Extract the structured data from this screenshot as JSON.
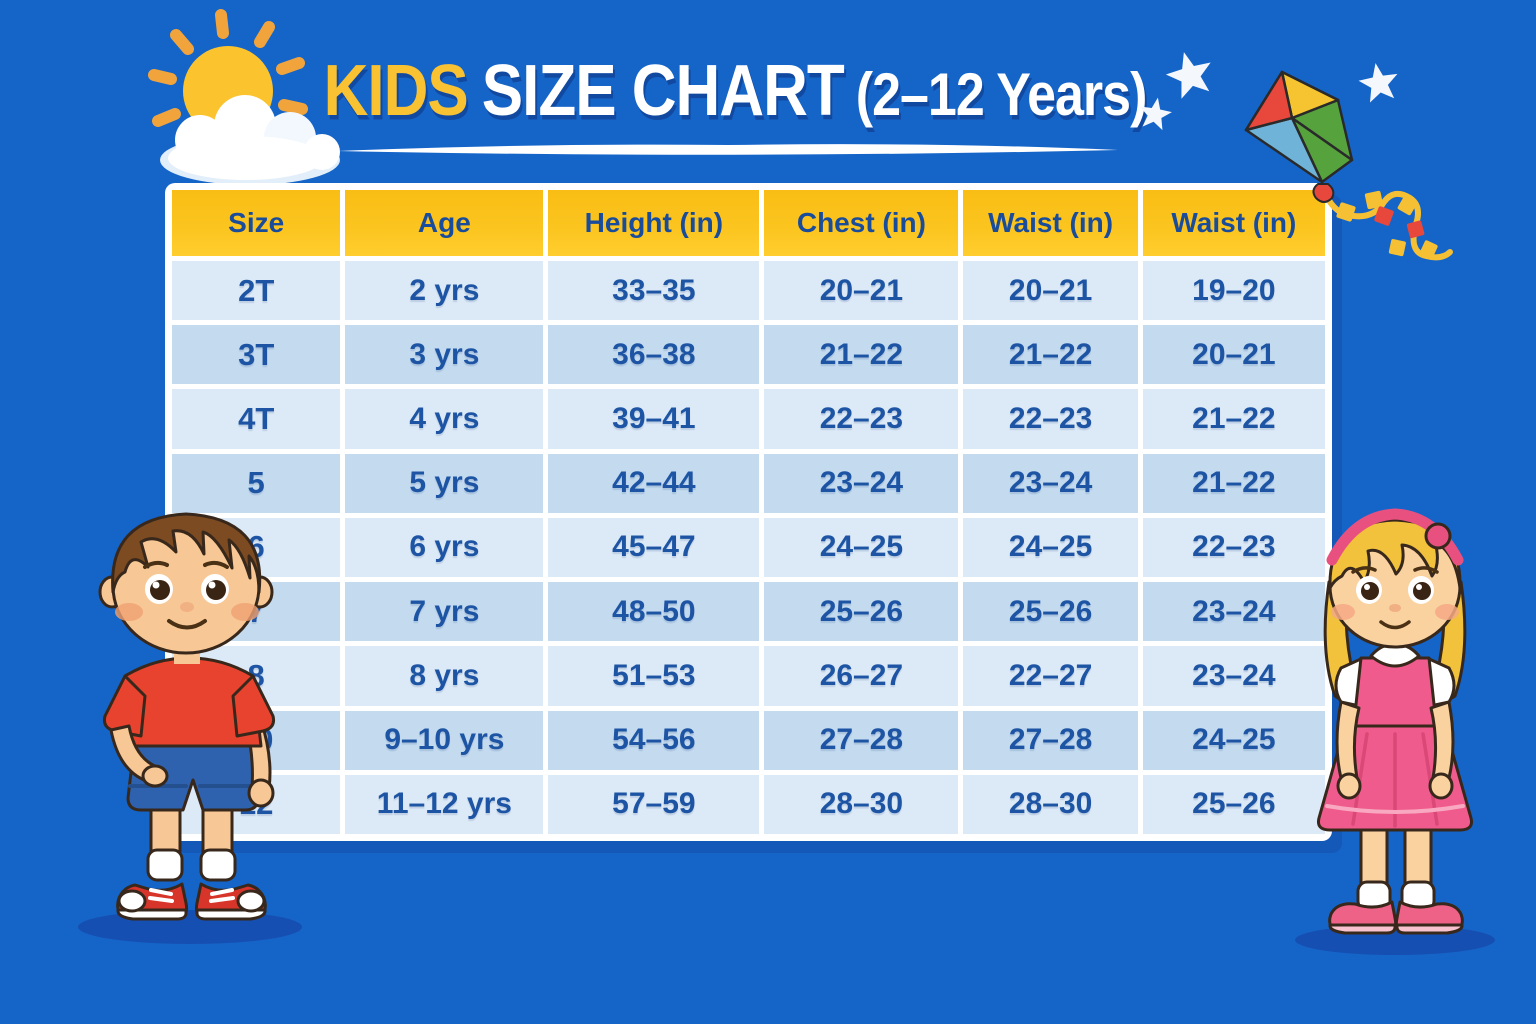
{
  "poster": {
    "title": {
      "kids": "KIDS",
      "main": "SIZE CHART",
      "suffix": "(2–12 Years)"
    }
  },
  "colors": {
    "background": "#1565C9",
    "panel": "#FFFFFF",
    "header_bg": "#FBC41E",
    "header_text": "#1A4C9C",
    "row_light": "#DCE9F6",
    "row_dark": "#C3DAEF",
    "cell_text": "#1D55A4",
    "title_yellow": "#F8C233",
    "title_white": "#FFFFFF",
    "shadow_blue": "#173E9E"
  },
  "chart_data": {
    "type": "table",
    "title": "KIDS SIZE CHART (2–12 Years)",
    "columns": [
      "Size",
      "Age",
      "Height (in)",
      "Chest (in)",
      "Waist (in)",
      "Waist (in)"
    ],
    "rows": [
      [
        "2T",
        "2 yrs",
        "33–35",
        "20–21",
        "20–21",
        "19–20"
      ],
      [
        "3T",
        "3 yrs",
        "36–38",
        "21–22",
        "21–22",
        "20–21"
      ],
      [
        "4T",
        "4 yrs",
        "39–41",
        "22–23",
        "22–23",
        "21–22"
      ],
      [
        "5",
        "5 yrs",
        "42–44",
        "23–24",
        "23–24",
        "21–22"
      ],
      [
        "6",
        "6 yrs",
        "45–47",
        "24–25",
        "24–25",
        "22–23"
      ],
      [
        "7",
        "7 yrs",
        "48–50",
        "25–26",
        "25–26",
        "23–24"
      ],
      [
        "8",
        "8 yrs",
        "51–53",
        "26–27",
        "22–27",
        "23–24"
      ],
      [
        "10",
        "9–10 yrs",
        "54–56",
        "27–28",
        "27–28",
        "24–25"
      ],
      [
        "12",
        "11–12 yrs",
        "57–59",
        "28–30",
        "28–30",
        "25–26"
      ]
    ],
    "layout": {
      "grid": "off",
      "row_striping": [
        "light-blue",
        "medium-blue"
      ],
      "header_style": "yellow"
    }
  },
  "decorations": {
    "icons": [
      "sun-icon",
      "cloud-icon",
      "star-icon",
      "kite-icon",
      "boy-illustration",
      "girl-illustration",
      "title-underline-swoosh"
    ]
  }
}
